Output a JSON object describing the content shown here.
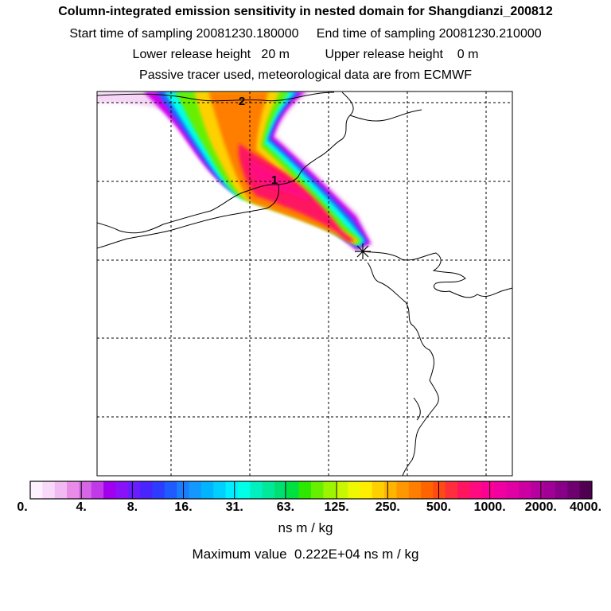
{
  "header": {
    "title": "Column-integrated emission sensitivity in nested domain for Shangdianzi_200812",
    "sampling_line": "Start time of sampling 20081230.180000     End time of sampling 20081230.210000",
    "release_line": "Lower release height   20 m          Upper release height    0 m",
    "tracer_line": "Passive tracer used, meteorological data are from ECMWF"
  },
  "map": {
    "contour_labels": [
      "2",
      "1"
    ],
    "release_marker": "release-site-star"
  },
  "colorbar": {
    "tick_labels": [
      "0.",
      "4.",
      "8.",
      "16.",
      "31.",
      "63.",
      "125.",
      "250.",
      "500.",
      "1000.",
      "2000.",
      "4000."
    ],
    "colors": [
      "#fdf1fd",
      "#f9d9f9",
      "#f2baf2",
      "#e88ce8",
      "#d766e6",
      "#c13ae8",
      "#a100f0",
      "#8a12f8",
      "#6a1eff",
      "#4a24ff",
      "#2e3cff",
      "#1e5cff",
      "#1a7cff",
      "#1398ff",
      "#00b4ff",
      "#00d0ff",
      "#00eeff",
      "#00ffe8",
      "#00f0c0",
      "#00e89a",
      "#00e070",
      "#00e040",
      "#2ee800",
      "#66f000",
      "#9cf400",
      "#c8f800",
      "#eef800",
      "#ffee00",
      "#ffd000",
      "#ffb400",
      "#ff9800",
      "#ff7e00",
      "#ff6400",
      "#ff4a14",
      "#ff2e3c",
      "#ff1460",
      "#ff0a80",
      "#ff0096",
      "#f000a0",
      "#e000a4",
      "#cc00a2",
      "#b8009e",
      "#a00096",
      "#880088",
      "#6e0070",
      "#500050"
    ],
    "units": "ns m / kg",
    "max_value_line": "Maximum value  0.222E+04 ns m / kg"
  }
}
